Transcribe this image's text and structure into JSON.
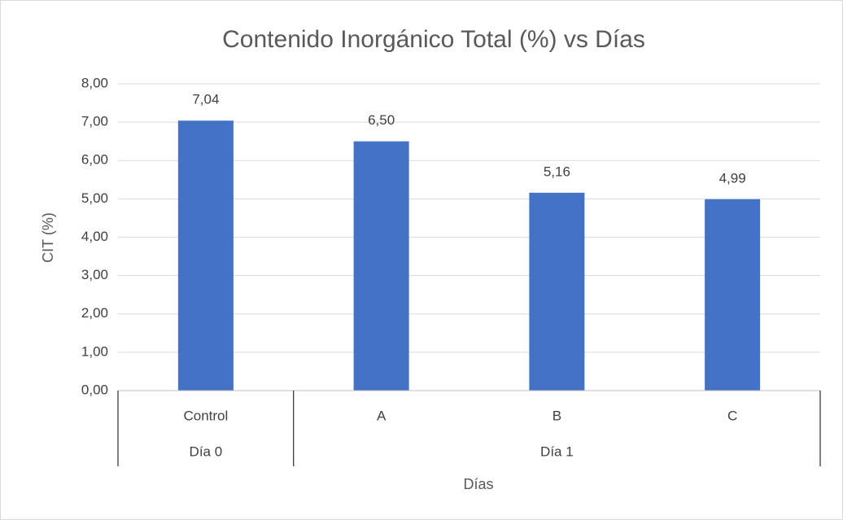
{
  "chart_data": {
    "type": "bar",
    "title": "Contenido Inorgánico Total (%) vs Días",
    "x_label": "Días",
    "y_label": "CIT (%)",
    "groups": [
      {
        "label": "Día 0",
        "categories": [
          "Control"
        ]
      },
      {
        "label": "Día 1",
        "categories": [
          "A",
          "B",
          "C"
        ]
      }
    ],
    "values": [
      7.04,
      6.5,
      5.16,
      4.99
    ],
    "value_labels": [
      "7,04",
      "6,50",
      "5,16",
      "4,99"
    ],
    "color": "#4472c4",
    "ylim": [
      0,
      8
    ],
    "yticks": [
      {
        "value": 0,
        "label": "0,00"
      },
      {
        "value": 1,
        "label": "1,00"
      },
      {
        "value": 2,
        "label": "2,00"
      },
      {
        "value": 3,
        "label": "3,00"
      },
      {
        "value": 4,
        "label": "4,00"
      },
      {
        "value": 5,
        "label": "5,00"
      },
      {
        "value": 6,
        "label": "6,00"
      },
      {
        "value": 7,
        "label": "7,00"
      },
      {
        "value": 8,
        "label": "8,00"
      }
    ],
    "grid": true
  }
}
